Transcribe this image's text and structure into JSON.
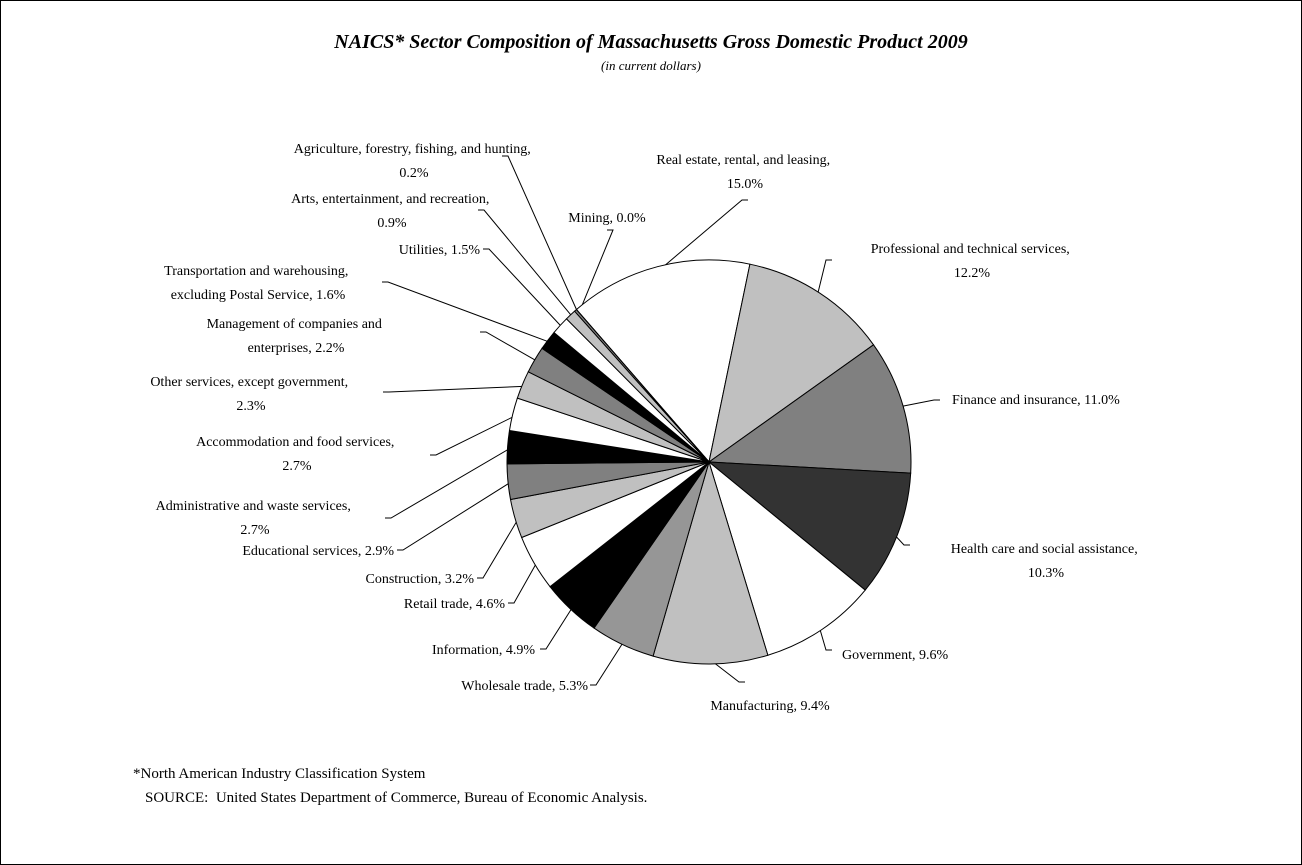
{
  "chart_data": {
    "type": "pie",
    "title": "NAICS* Sector Composition of Massachusetts Gross Domestic Product 2009",
    "subtitle": "(in current dollars)",
    "values": [
      15.0,
      12.2,
      11.0,
      10.3,
      9.6,
      9.4,
      5.3,
      4.9,
      4.6,
      3.2,
      2.9,
      2.7,
      2.7,
      2.3,
      2.2,
      1.6,
      1.5,
      0.9,
      0.2,
      0.0
    ],
    "value_labels": [
      "Real estate, rental, and leasing, 15.0%",
      "Professional and technical services, 12.2%",
      "Finance and insurance, 11.0%",
      "Health care and social assistance, 10.3%",
      "Government, 9.6%",
      "Manufacturing, 9.4%",
      "Wholesale trade, 5.3%",
      "Information, 4.9%",
      "Retail trade, 4.6%",
      "Construction, 3.2%",
      "Educational services, 2.9%",
      "Administrative and waste services, 2.7%",
      "Accommodation and food services, 2.7%",
      "Other services, except government, 2.3%",
      "Management of companies and enterprises, 2.2%",
      "Transportation and warehousing, excluding Postal Service, 1.6%",
      "Utilities, 1.5%",
      "Arts, entertainment, and recreation, 0.9%",
      "Agriculture, forestry, fishing, and hunting, 0.2%",
      "Mining, 0.0%"
    ],
    "colors": [
      "#ffffff",
      "#c0c0c0",
      "#808080",
      "#333333",
      "#ffffff",
      "#c0c0c0",
      "#969696",
      "#000000",
      "#ffffff",
      "#c0c0c0",
      "#808080",
      "#000000",
      "#ffffff",
      "#c0c0c0",
      "#808080",
      "#000000",
      "#ffffff",
      "#c0c0c0",
      "#808080",
      "#000000"
    ],
    "footnotes": [
      "*North American Industry Classification System",
      "SOURCE:  United States Department of Commerce, Bureau of Economic Analysis."
    ]
  }
}
